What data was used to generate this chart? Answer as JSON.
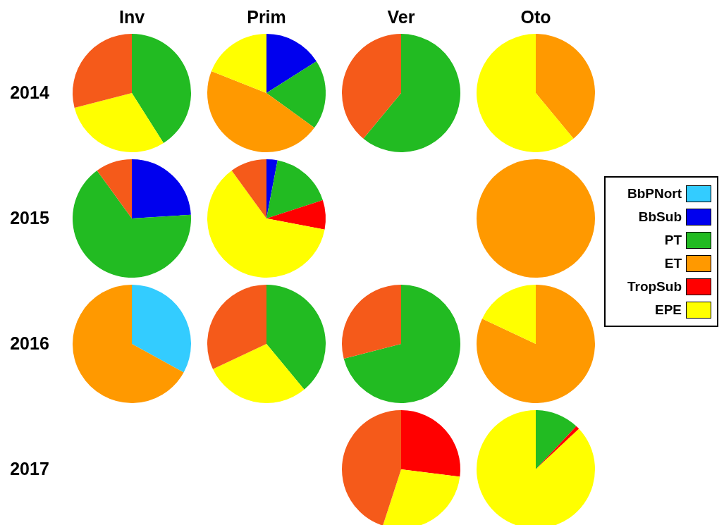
{
  "chart_data": [
    {
      "type": "pie",
      "title": "Inv",
      "ylabel": "2014",
      "legend": "right",
      "categories": [
        "BbPNort",
        "BbSub",
        "PT",
        "ET",
        "TropSub",
        "EPE",
        null
      ],
      "values": [
        0,
        0,
        41,
        0,
        0,
        30,
        29
      ],
      "colors": [
        "#33ccff",
        "#0000ee",
        "#22bb22",
        "#ff9900",
        "#ff0000",
        "#ffff00",
        "#f55a1a"
      ]
    },
    {
      "type": "pie",
      "title": "Prim",
      "categories": [
        null,
        null,
        null,
        null,
        null,
        null,
        null
      ],
      "values": [
        0,
        16,
        19,
        46,
        0,
        19,
        0
      ],
      "colors": [
        "#33ccff",
        "#0000ee",
        "#22bb22",
        "#ff9900",
        "#ff0000",
        "#ffff00",
        "#f55a1a"
      ]
    },
    {
      "type": "pie",
      "title": "Ver",
      "categories": [
        null,
        null,
        null,
        null,
        null,
        null,
        null
      ],
      "values": [
        0,
        0,
        61,
        0,
        0,
        0,
        39
      ],
      "colors": [
        "#33ccff",
        "#0000ee",
        "#22bb22",
        "#ff9900",
        "#ff0000",
        "#ffff00",
        "#f55a1a"
      ]
    },
    {
      "type": "pie",
      "title": "Oto",
      "categories": [
        null,
        null,
        null,
        null,
        null,
        null,
        null
      ],
      "values": [
        0,
        0,
        0,
        39,
        0,
        61,
        0
      ],
      "colors": [
        "#33ccff",
        "#0000ee",
        "#22bb22",
        "#ff9900",
        "#ff0000",
        "#ffff00",
        "#f55a1a"
      ]
    },
    {
      "type": "pie",
      "ylabel": "2015",
      "categories": [
        null,
        null,
        null,
        null,
        null,
        null,
        null
      ],
      "values": [
        0,
        24,
        66,
        0,
        0,
        0,
        10
      ],
      "colors": [
        "#33ccff",
        "#0000ee",
        "#22bb22",
        "#ff9900",
        "#ff0000",
        "#ffff00",
        "#f55a1a"
      ]
    },
    {
      "type": "pie",
      "categories": [
        null,
        null,
        null,
        null,
        null,
        null,
        null
      ],
      "values": [
        0,
        3,
        17,
        0,
        8,
        62,
        10
      ],
      "colors": [
        "#33ccff",
        "#0000ee",
        "#22bb22",
        "#ff9900",
        "#ff0000",
        "#ffff00",
        "#f55a1a"
      ]
    },
    {
      "type": "pie",
      "categories": [
        null,
        null,
        null,
        null,
        null,
        null,
        null
      ],
      "values": [
        0,
        0,
        0,
        100,
        0,
        0,
        0
      ],
      "colors": [
        "#33ccff",
        "#0000ee",
        "#22bb22",
        "#ff9900",
        "#ff0000",
        "#ffff00",
        "#f55a1a"
      ]
    },
    {
      "type": "pie",
      "ylabel": "2016",
      "categories": [
        null,
        null,
        null,
        null,
        null,
        null,
        null
      ],
      "values": [
        33,
        0,
        0,
        67,
        0,
        0,
        0
      ],
      "colors": [
        "#33ccff",
        "#0000ee",
        "#22bb22",
        "#ff9900",
        "#ff0000",
        "#ffff00",
        "#f55a1a"
      ]
    },
    {
      "type": "pie",
      "categories": [
        null,
        null,
        null,
        null,
        null,
        null,
        null
      ],
      "values": [
        0,
        0,
        39,
        0,
        0,
        29,
        32
      ],
      "colors": [
        "#33ccff",
        "#0000ee",
        "#22bb22",
        "#ff9900",
        "#ff0000",
        "#ffff00",
        "#f55a1a"
      ]
    },
    {
      "type": "pie",
      "categories": [
        null,
        null,
        null,
        null,
        null,
        null,
        null
      ],
      "values": [
        0,
        0,
        71,
        0,
        0,
        0,
        29
      ],
      "colors": [
        "#33ccff",
        "#0000ee",
        "#22bb22",
        "#ff9900",
        "#ff0000",
        "#ffff00",
        "#f55a1a"
      ]
    },
    {
      "type": "pie",
      "categories": [
        null,
        null,
        null,
        null,
        null,
        null,
        null
      ],
      "values": [
        0,
        0,
        0,
        82,
        0,
        18,
        0
      ],
      "colors": [
        "#33ccff",
        "#0000ee",
        "#22bb22",
        "#ff9900",
        "#ff0000",
        "#ffff00",
        "#f55a1a"
      ]
    },
    {
      "type": "pie",
      "ylabel": "2017",
      "categories": [
        null,
        null,
        null,
        null,
        null,
        null,
        null
      ],
      "values": [
        0,
        0,
        0,
        0,
        27,
        28,
        45
      ],
      "colors": [
        "#33ccff",
        "#0000ee",
        "#22bb22",
        "#ff9900",
        "#ff0000",
        "#ffff00",
        "#f55a1a"
      ]
    },
    {
      "type": "pie",
      "categories": [
        null,
        null,
        null,
        null,
        null,
        null,
        null
      ],
      "values": [
        0,
        0,
        12,
        0,
        1,
        87,
        0
      ],
      "colors": [
        "#33ccff",
        "#0000ee",
        "#22bb22",
        "#ff9900",
        "#ff0000",
        "#ffff00",
        "#f55a1a"
      ]
    }
  ]
}
